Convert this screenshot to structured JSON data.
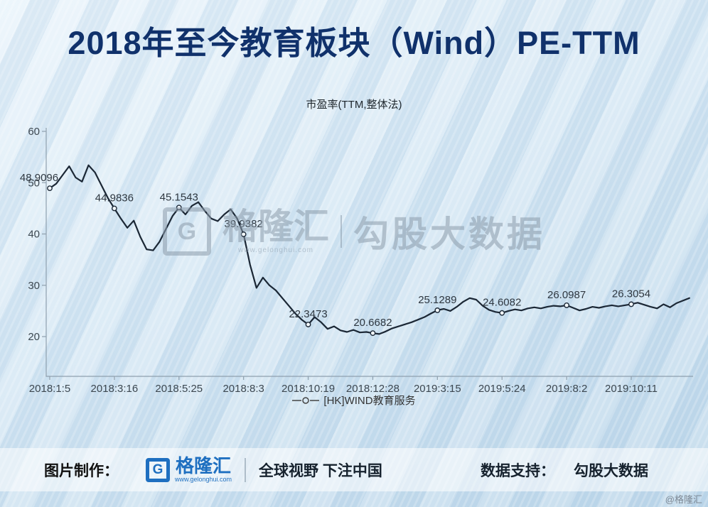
{
  "title": "2018年至今教育板块（Wind）PE-TTM",
  "chart_data": {
    "type": "line",
    "title": "市盈率(TTM,整体法)",
    "series_name": "[HK]WIND教育服务",
    "legend_position": "bottom",
    "grid": false,
    "line_color": "#1b2735",
    "x_tick_labels": [
      "2018:1:5",
      "2018:3:16",
      "2018:5:25",
      "2018:8:3",
      "2018:10:19",
      "2018:12:28",
      "2019:3:15",
      "2019:5:24",
      "2019:8:2",
      "2019:10:11"
    ],
    "y_ticks": [
      20,
      30,
      40,
      50,
      60
    ],
    "ylim": [
      12,
      62
    ],
    "values": [
      48.9096,
      49.8,
      51.5,
      53.2,
      51.0,
      50.2,
      53.4,
      52.0,
      49.5,
      47.0,
      44.9836,
      43.0,
      41.2,
      42.6,
      39.5,
      37.0,
      36.8,
      38.5,
      41.0,
      43.5,
      45.1543,
      43.8,
      45.5,
      46.2,
      44.5,
      43.0,
      42.5,
      43.8,
      44.8,
      43.0,
      39.9382,
      34.0,
      29.5,
      31.5,
      30.0,
      29.0,
      27.5,
      26.0,
      24.5,
      23.3,
      22.3473,
      23.8,
      22.8,
      21.5,
      22.0,
      21.2,
      20.9,
      21.3,
      20.8,
      20.9,
      20.6682,
      20.5,
      21.0,
      21.6,
      22.0,
      22.4,
      22.8,
      23.3,
      23.8,
      24.5,
      25.1289,
      25.4,
      25.0,
      25.8,
      26.8,
      27.5,
      27.2,
      26.0,
      25.2,
      24.8,
      24.6082,
      25.0,
      25.3,
      25.1,
      25.5,
      25.7,
      25.5,
      25.8,
      26.0,
      25.9,
      26.0987,
      25.6,
      25.1,
      25.4,
      25.8,
      25.6,
      25.9,
      26.1,
      25.9,
      26.1,
      26.3054,
      26.6,
      26.2,
      25.8,
      25.5,
      26.3,
      25.7,
      26.5,
      27.0,
      27.5
    ],
    "labeled_points": [
      {
        "index": 0,
        "value_label": "48.9096"
      },
      {
        "index": 10,
        "value_label": "44.9836"
      },
      {
        "index": 20,
        "value_label": "45.1543"
      },
      {
        "index": 30,
        "value_label": "39.9382"
      },
      {
        "index": 40,
        "value_label": "22.3473"
      },
      {
        "index": 50,
        "value_label": "20.6682"
      },
      {
        "index": 60,
        "value_label": "25.1289"
      },
      {
        "index": 70,
        "value_label": "24.6082"
      },
      {
        "index": 80,
        "value_label": "26.0987"
      },
      {
        "index": 90,
        "value_label": "26.3054"
      }
    ]
  },
  "watermark": {
    "logo_letter": "G",
    "brand": "格隆汇",
    "url": "www.gelonghui.com",
    "right": "勾股大数据"
  },
  "footer": {
    "made_by": "图片制作：",
    "logo_letter": "G",
    "brand": "格隆汇",
    "url": "www.gelonghui.com",
    "slogan": "全球视野 下注中国",
    "data_support": "数据支持：",
    "data_brand": "勾股大数据"
  },
  "corner_credit": "@格隆汇"
}
